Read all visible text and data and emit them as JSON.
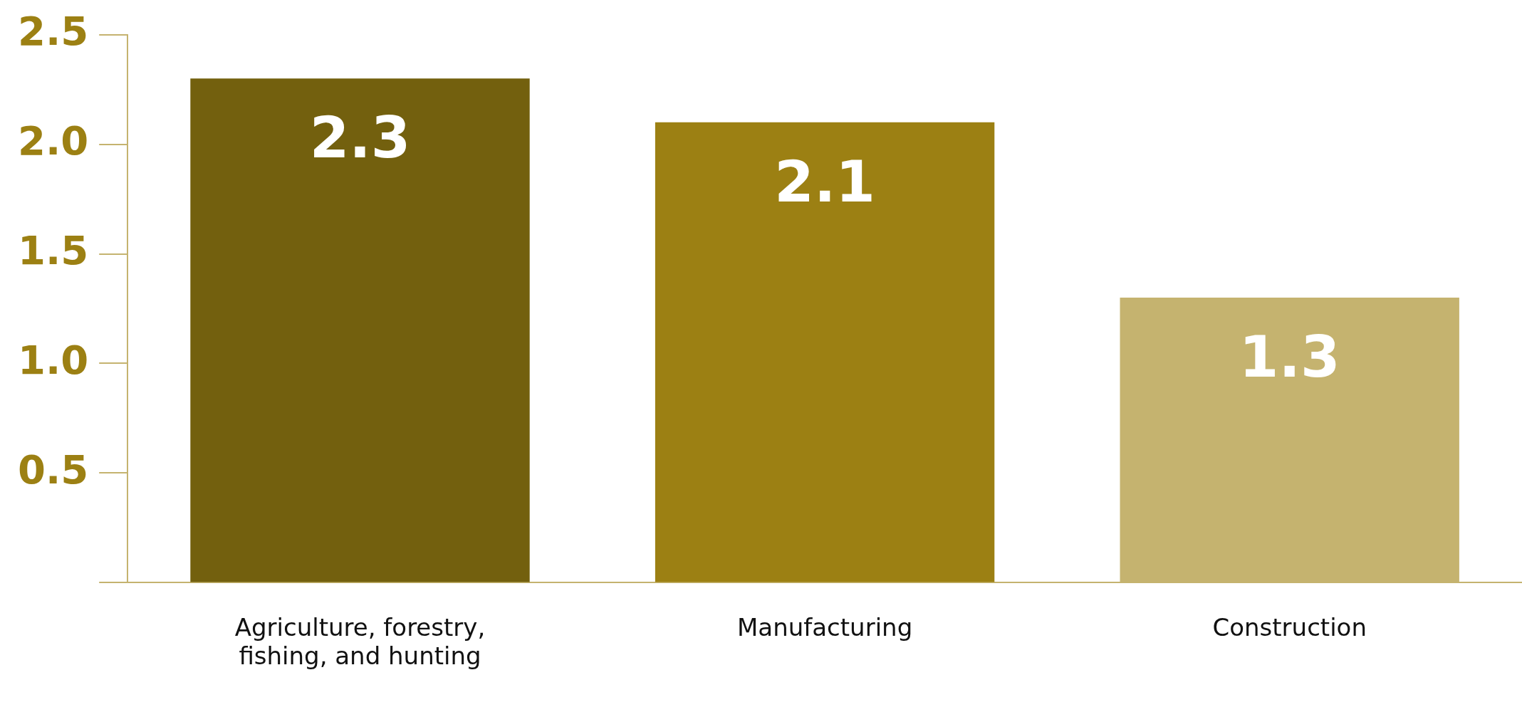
{
  "chart_data": {
    "type": "bar",
    "categories": [
      "Agriculture, forestry, fishing, and hunting",
      "Manufacturing",
      "Construction"
    ],
    "values": [
      2.3,
      2.1,
      1.3
    ],
    "colors": [
      "#73600e",
      "#9c8013",
      "#c5b36f"
    ],
    "ylim": [
      0,
      2.5
    ],
    "yticks": [
      {
        "value": 0,
        "label": null
      },
      {
        "value": 0.5,
        "label": "0.5"
      },
      {
        "value": 1,
        "label": "1.0"
      },
      {
        "value": 1.5,
        "label": "1.5"
      },
      {
        "value": 2,
        "label": "2.0"
      },
      {
        "value": 2.5,
        "label": "2.5"
      }
    ],
    "grid": false,
    "legend": false,
    "data_labels": true
  }
}
